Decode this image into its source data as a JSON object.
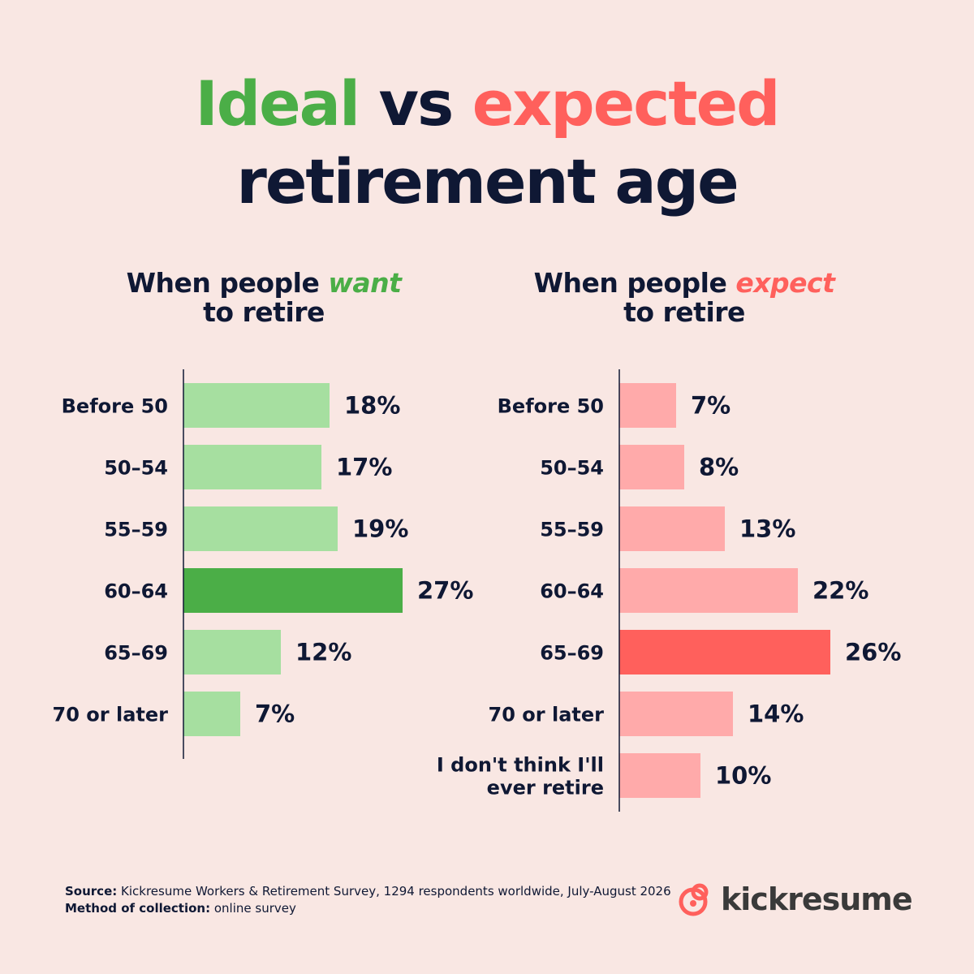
{
  "title": {
    "word_ideal": "Ideal",
    "word_vs": "vs",
    "word_expected": "expected",
    "line2": "retirement age"
  },
  "colors": {
    "background": "#f9e7e3",
    "text": "#0f1834",
    "green_dark": "#4bae47",
    "green_light": "#a6dfa0",
    "red_dark": "#ff605c",
    "red_light": "#ffaaaa"
  },
  "chart_data": [
    {
      "type": "bar",
      "orientation": "horizontal",
      "title_prefix": "When people ",
      "title_emphasis": "want",
      "title_suffix": "to retire",
      "categories": [
        "Before 50",
        "50–54",
        "55–59",
        "60–64",
        "65–69",
        "70 or later"
      ],
      "values": [
        18,
        17,
        19,
        27,
        12,
        7
      ],
      "value_labels": [
        "18%",
        "17%",
        "19%",
        "27%",
        "12%",
        "7%"
      ],
      "highlight_index": 3,
      "color": "#a6dfa0",
      "highlight_color": "#4bae47"
    },
    {
      "type": "bar",
      "orientation": "horizontal",
      "title_prefix": "When people ",
      "title_emphasis": "expect",
      "title_suffix": "to retire",
      "categories": [
        "Before 50",
        "50–54",
        "55–59",
        "60–64",
        "65–69",
        "70 or later",
        [
          "I don't think I'll",
          "ever retire"
        ]
      ],
      "values": [
        7,
        8,
        13,
        22,
        26,
        14,
        10
      ],
      "value_labels": [
        "7%",
        "8%",
        "13%",
        "22%",
        "26%",
        "14%",
        "10%"
      ],
      "highlight_index": 4,
      "color": "#ffaaaa",
      "highlight_color": "#ff605c"
    }
  ],
  "footer": {
    "source_label": "Source:",
    "source_text": " Kickresume Workers & Retirement Survey, 1294 respondents worldwide, July-August 2026",
    "method_label": "Method of collection:",
    "method_text": " online survey"
  },
  "logo": {
    "icon": "kickresume-logo-icon",
    "text": "kickresume"
  }
}
